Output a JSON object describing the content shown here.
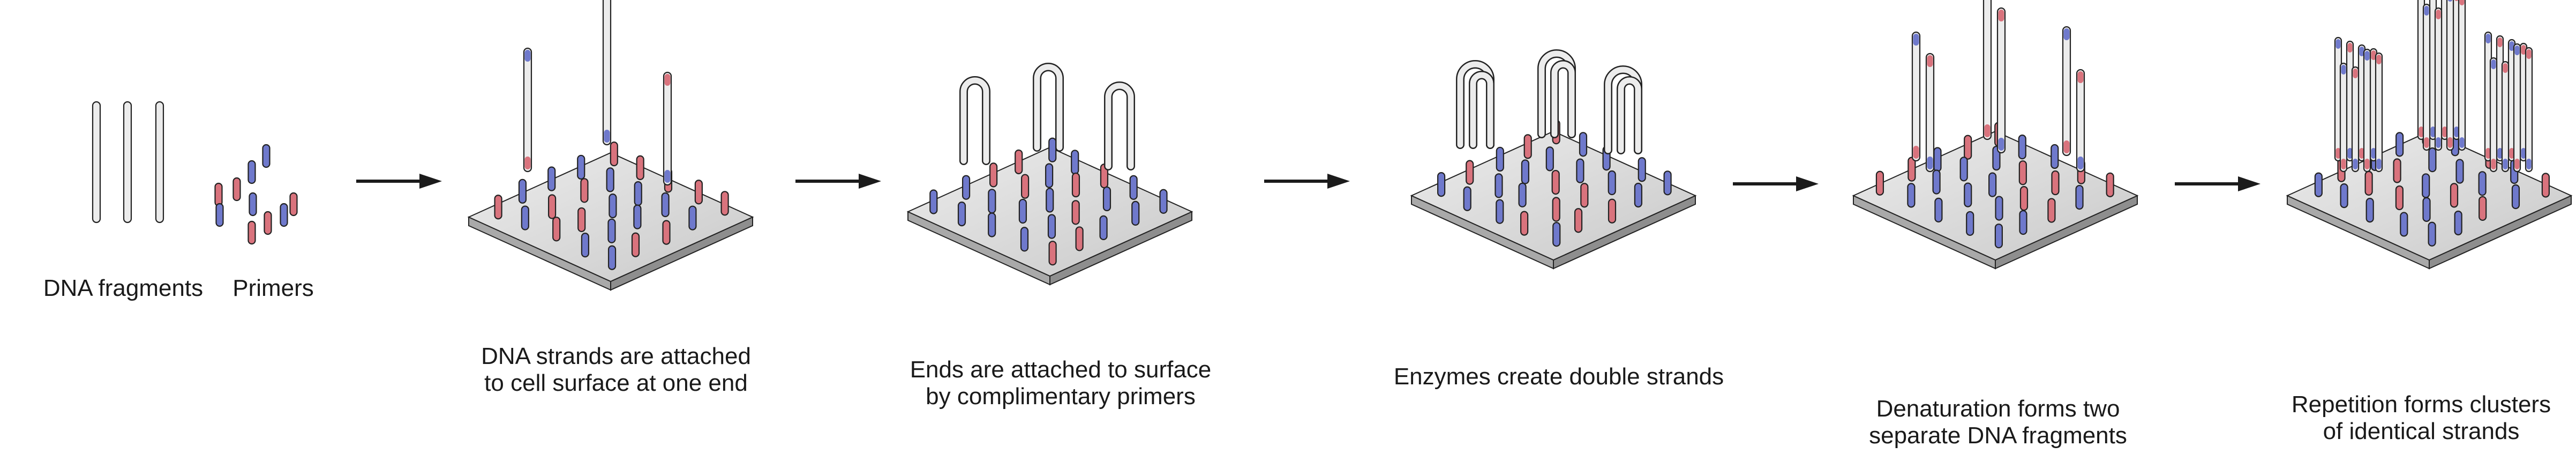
{
  "labels": {
    "fragments": "DNA fragments",
    "primers": "Primers",
    "step1": [
      "DNA strands are attached",
      "to cell surface at one end"
    ],
    "step2": [
      "Ends are attached to surface",
      "by complimentary primers"
    ],
    "step3": [
      "Enzymes create double strands"
    ],
    "step4": [
      "Denaturation forms two",
      "separate DNA fragments"
    ],
    "step5": [
      "Repetition forms clusters",
      "of identical strands"
    ]
  },
  "colors": {
    "red_primer": "#d9737d",
    "blue_primer": "#6f79cc",
    "plate_top": "#dcdcdc",
    "plate_side": "#b5b5b5",
    "strand": "#ececec",
    "outline": "#222222"
  }
}
